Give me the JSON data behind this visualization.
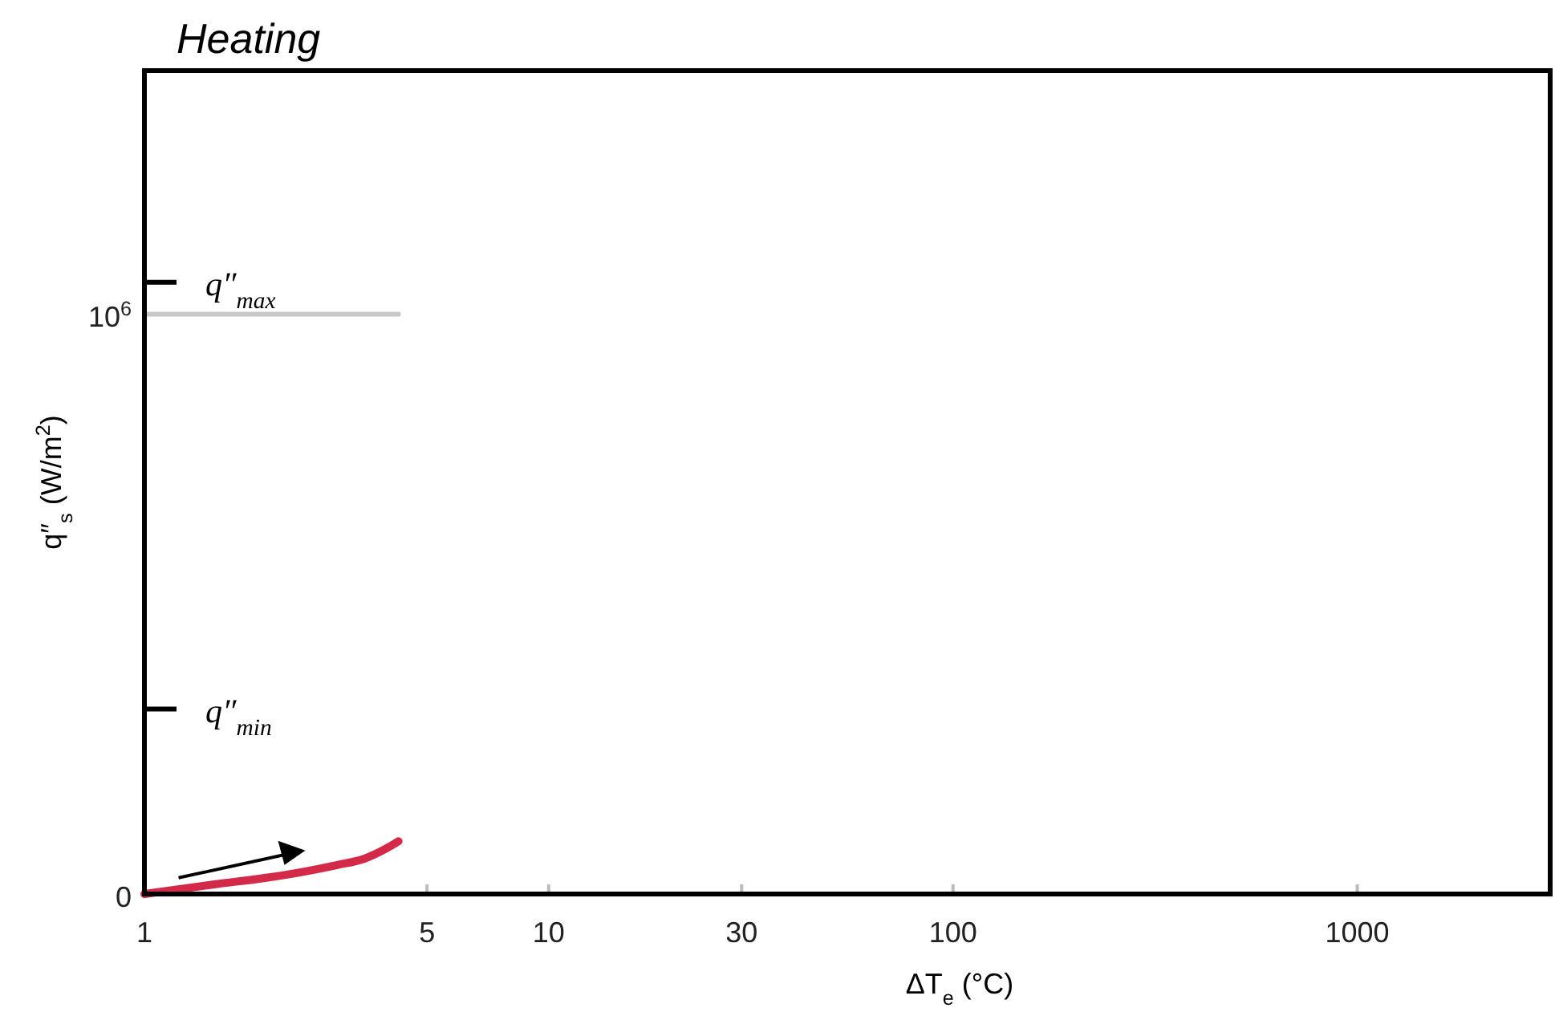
{
  "chart_data": {
    "type": "line",
    "title": "Heating",
    "xlabel": "ΔT$_{e}$ (°C)",
    "ylabel": "q″$_{s}$ (W/m$^{2}$)",
    "log": "x",
    "xlim": [
      1,
      3000
    ],
    "xticks": [
      1,
      5,
      10,
      30,
      100,
      1000
    ],
    "ylim": [
      0,
      1420000
    ],
    "yticks": [
      0,
      {
        "value": 1000000,
        "label": "10$^{6}$"
      }
    ],
    "series": [
      {
        "color": "#c8c8c8",
        "x": [
          1,
          4.25
        ],
        "values": [
          1000000,
          1000000
        ]
      },
      {
        "color": "#d42a4a",
        "x": [
          1,
          1.5,
          2,
          2.5,
          3,
          3.5,
          4,
          4.25
        ],
        "values": [
          0,
          17000,
          28000,
          39000,
          50000,
          61000,
          80000,
          91000
        ]
      }
    ],
    "ref_lines": [
      {
        "axis": "y",
        "value": 1055000,
        "label": "q″$_{max}$"
      },
      {
        "axis": "y",
        "value": 319000,
        "label": "q″$_{min}$"
      }
    ],
    "grid": false
  }
}
